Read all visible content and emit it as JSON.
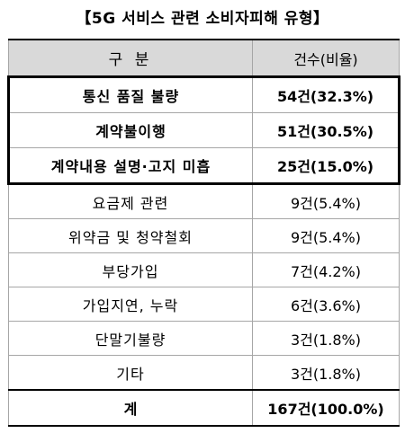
{
  "title": "【5G 서비스 관련 소비자피해 유형】",
  "header": {
    "col1": "구 분",
    "col2": "건수(비율)"
  },
  "rows": [
    {
      "category": "통신 품질 불량",
      "value": "54건(32.3%)",
      "highlight": true
    },
    {
      "category": "계약불이행",
      "value": "51건(30.5%)",
      "highlight": true
    },
    {
      "category": "계약내용 설명·고지 미흡",
      "value": "25건(15.0%)",
      "highlight": true
    },
    {
      "category": "요금제 관련",
      "value": "9건(5.4%)",
      "highlight": false
    },
    {
      "category": "위약금 및 청약철회",
      "value": "9건(5.4%)",
      "highlight": false
    },
    {
      "category": "부당가입",
      "value": "7건(4.2%)",
      "highlight": false
    },
    {
      "category": "가입지연, 누락",
      "value": "6건(3.6%)",
      "highlight": false
    },
    {
      "category": "단말기불량",
      "value": "3건(1.8%)",
      "highlight": false
    },
    {
      "category": "기타",
      "value": "3건(1.8%)",
      "highlight": false
    }
  ],
  "total": {
    "label": "계",
    "value": "167건(100.0%)"
  }
}
